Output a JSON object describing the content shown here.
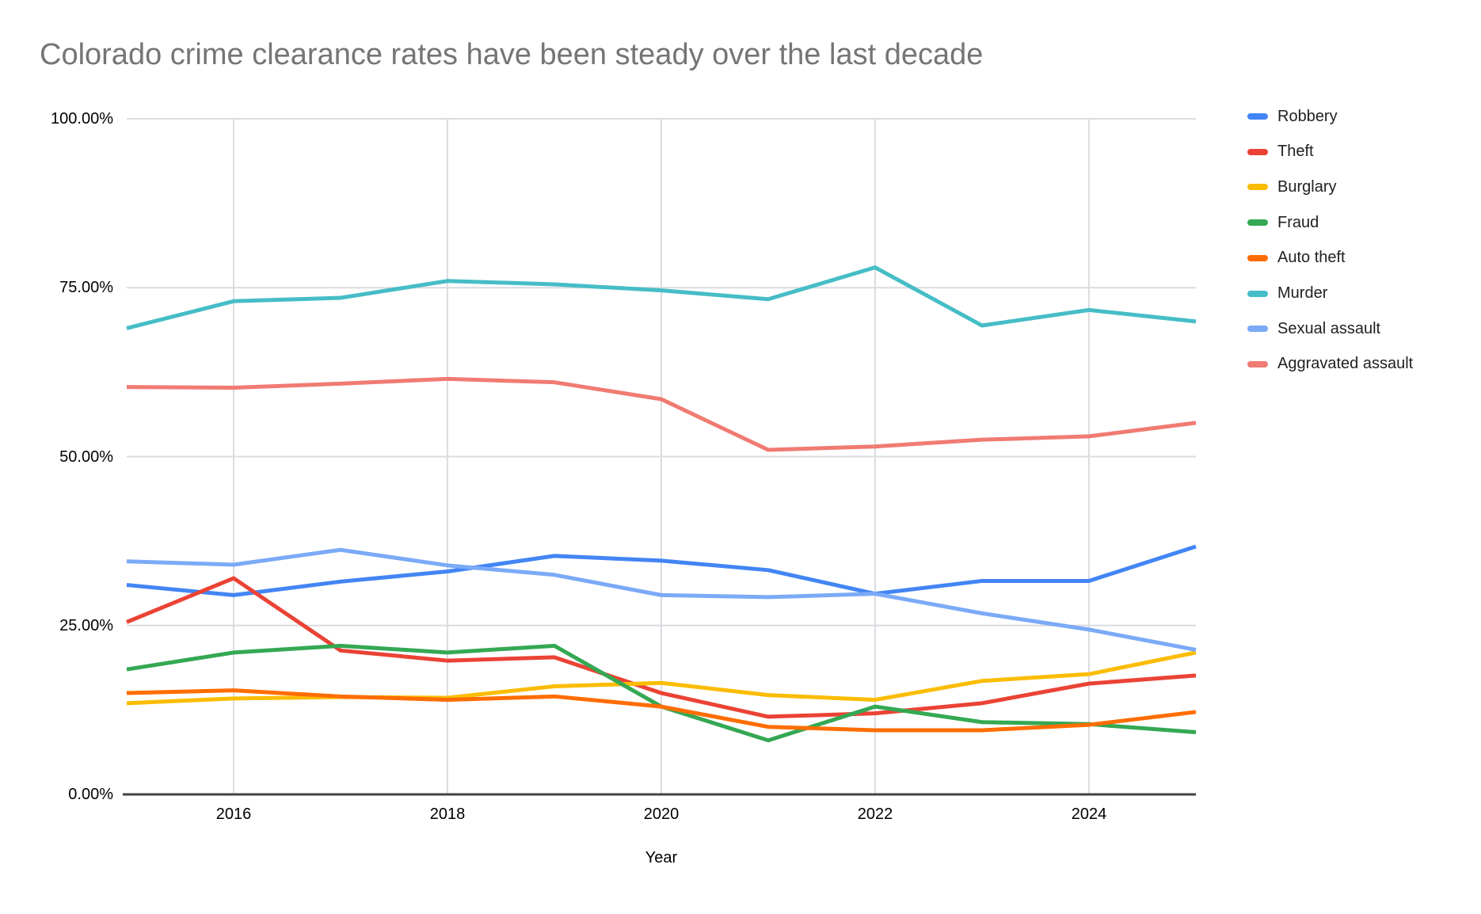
{
  "title": "Colorado crime clearance rates have been steady over the last decade",
  "chart_data": {
    "type": "line",
    "title": "Colorado crime clearance rates have been steady over the last decade",
    "xlabel": "Year",
    "ylabel": "",
    "x": [
      2015,
      2016,
      2017,
      2018,
      2019,
      2020,
      2021,
      2022,
      2023,
      2024,
      2025
    ],
    "x_ticks": [
      2016,
      2018,
      2020,
      2022,
      2024
    ],
    "y_ticks": [
      {
        "value": 0,
        "label": "0.00%"
      },
      {
        "value": 25,
        "label": "25.00%"
      },
      {
        "value": 50,
        "label": "50.00%"
      },
      {
        "value": 75,
        "label": "75.00%"
      },
      {
        "value": 100,
        "label": "100.00%"
      }
    ],
    "xlim": [
      2015,
      2025
    ],
    "ylim": [
      0,
      100
    ],
    "grid": true,
    "legend_position": "right",
    "axis_color": "#424242",
    "gridline_color": "#dadce0",
    "title_color": "#757575",
    "series": [
      {
        "name": "Robbery",
        "color": "#4285F4",
        "values": [
          31.0,
          29.5,
          31.5,
          33.0,
          35.3,
          34.6,
          33.2,
          29.7,
          31.6,
          31.6,
          36.7
        ]
      },
      {
        "name": "Theft",
        "color": "#EA4335",
        "values": [
          25.5,
          32.0,
          21.3,
          19.8,
          20.3,
          15.0,
          11.5,
          12.0,
          13.5,
          16.4,
          17.6
        ]
      },
      {
        "name": "Burglary",
        "color": "#FBBC04",
        "values": [
          13.5,
          14.2,
          14.4,
          14.3,
          16.0,
          16.5,
          14.7,
          14.0,
          16.8,
          17.8,
          21.0
        ]
      },
      {
        "name": "Fraud",
        "color": "#34A853",
        "values": [
          18.5,
          21.0,
          22.0,
          21.0,
          22.0,
          13.0,
          8.0,
          13.0,
          10.7,
          10.4,
          9.2
        ]
      },
      {
        "name": "Auto theft",
        "color": "#FF6D01",
        "values": [
          15.0,
          15.4,
          14.5,
          14.0,
          14.5,
          13.0,
          10.0,
          9.5,
          9.5,
          10.3,
          12.2
        ]
      },
      {
        "name": "Murder",
        "color": "#46BDC6",
        "values": [
          69.0,
          73.0,
          73.5,
          76.0,
          75.5,
          74.6,
          73.3,
          78.0,
          69.4,
          71.7,
          70.0
        ]
      },
      {
        "name": "Sexual assault",
        "color": "#7BAAF7",
        "values": [
          34.5,
          34.0,
          36.2,
          33.9,
          32.5,
          29.5,
          29.2,
          29.7,
          26.8,
          24.4,
          21.4
        ]
      },
      {
        "name": "Aggravated assault",
        "color": "#F07B72",
        "values": [
          60.3,
          60.2,
          60.8,
          61.5,
          61.0,
          58.5,
          51.0,
          51.5,
          52.5,
          53.0,
          55.0
        ]
      }
    ]
  }
}
